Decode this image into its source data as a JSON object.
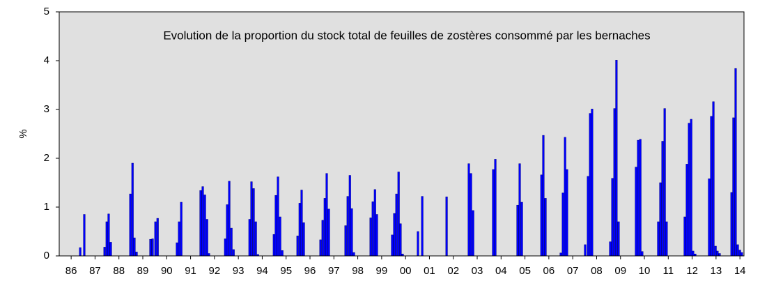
{
  "chart_data": {
    "type": "bar",
    "title": "Evolution de la proportion du stock total de feuilles de zostères consommé par les bernaches",
    "y_label": "%",
    "color": "#0000ff",
    "x": [
      1986.38,
      1986.55,
      1987.4,
      1987.49,
      1987.57,
      1987.66,
      1988.48,
      1988.57,
      1988.65,
      1988.74,
      1989.32,
      1989.41,
      1989.53,
      1989.62,
      1990.43,
      1990.52,
      1990.61,
      1991.42,
      1991.51,
      1991.6,
      1991.69,
      1991.77,
      1992.45,
      1992.53,
      1992.62,
      1992.71,
      1992.8,
      1993.47,
      1993.55,
      1993.64,
      1993.73,
      1993.82,
      1994.49,
      1994.57,
      1994.66,
      1994.75,
      1994.84,
      1995.48,
      1995.57,
      1995.65,
      1995.74,
      1996.44,
      1996.53,
      1996.62,
      1996.7,
      1996.79,
      1997.49,
      1997.58,
      1997.67,
      1997.75,
      1997.84,
      1998.54,
      1998.63,
      1998.72,
      1998.8,
      1999.44,
      1999.53,
      1999.62,
      1999.71,
      1999.79,
      1999.88,
      2000.52,
      2000.7,
      2001.72,
      2002.65,
      2002.74,
      2002.83,
      2003.67,
      2003.76,
      2004.69,
      2004.78,
      2004.87,
      2005.69,
      2005.77,
      2005.86,
      2006.5,
      2006.59,
      2006.68,
      2006.76,
      2007.52,
      2007.64,
      2007.73,
      2007.81,
      2008.57,
      2008.66,
      2008.75,
      2008.83,
      2008.92,
      2009.65,
      2009.74,
      2009.83,
      2009.91,
      2010.58,
      2010.67,
      2010.76,
      2010.85,
      2010.93,
      2011.69,
      2011.78,
      2011.87,
      2011.96,
      2012.04,
      2012.13,
      2012.71,
      2012.8,
      2012.89,
      2012.98,
      2013.06,
      2013.15,
      2013.65,
      2013.73,
      2013.82,
      2013.91,
      2014.0,
      2014.08
    ],
    "values": [
      0.17,
      0.85,
      0.18,
      0.7,
      0.86,
      0.28,
      1.27,
      1.9,
      0.37,
      0.08,
      0.34,
      0.35,
      0.7,
      0.77,
      0.27,
      0.7,
      1.1,
      1.34,
      1.42,
      1.25,
      0.75,
      0.05,
      0.35,
      1.05,
      1.53,
      0.57,
      0.13,
      0.75,
      1.52,
      1.38,
      0.7,
      0.03,
      0.44,
      1.24,
      1.62,
      0.8,
      0.11,
      0.41,
      1.08,
      1.35,
      0.68,
      0.33,
      0.73,
      1.18,
      1.69,
      0.96,
      0.62,
      1.22,
      1.65,
      0.97,
      0.07,
      0.78,
      1.11,
      1.36,
      0.85,
      0.43,
      0.87,
      1.27,
      1.72,
      0.66,
      0.04,
      0.5,
      1.22,
      1.21,
      1.89,
      1.69,
      0.93,
      1.77,
      1.98,
      1.04,
      1.89,
      1.1,
      1.66,
      2.47,
      1.18,
      0.06,
      1.29,
      2.43,
      1.77,
      0.23,
      1.63,
      2.92,
      3.01,
      0.29,
      1.59,
      3.02,
      4.01,
      0.7,
      1.82,
      2.37,
      2.39,
      0.09,
      0.7,
      1.5,
      2.35,
      3.02,
      0.7,
      0.8,
      1.88,
      2.72,
      2.8,
      0.1,
      0.04,
      1.58,
      2.86,
      3.16,
      0.2,
      0.1,
      0.05,
      1.3,
      2.83,
      3.84,
      0.23,
      0.12,
      0.07
    ],
    "xlim": [
      1985.5,
      2014.17
    ],
    "xticks": [
      {
        "value": 1986,
        "label": "86"
      },
      {
        "value": 1987,
        "label": "87"
      },
      {
        "value": 1988,
        "label": "88"
      },
      {
        "value": 1989,
        "label": "89"
      },
      {
        "value": 1990,
        "label": "90"
      },
      {
        "value": 1991,
        "label": "91"
      },
      {
        "value": 1992,
        "label": "92"
      },
      {
        "value": 1993,
        "label": "93"
      },
      {
        "value": 1994,
        "label": "94"
      },
      {
        "value": 1995,
        "label": "95"
      },
      {
        "value": 1996,
        "label": "96"
      },
      {
        "value": 1997,
        "label": "97"
      },
      {
        "value": 1998,
        "label": "98"
      },
      {
        "value": 1999,
        "label": "99"
      },
      {
        "value": 2000,
        "label": "00"
      },
      {
        "value": 2001,
        "label": "01"
      },
      {
        "value": 2002,
        "label": "02"
      },
      {
        "value": 2003,
        "label": "03"
      },
      {
        "value": 2004,
        "label": "04"
      },
      {
        "value": 2005,
        "label": "05"
      },
      {
        "value": 2006,
        "label": "06"
      },
      {
        "value": 2007,
        "label": "07"
      },
      {
        "value": 2008,
        "label": "08"
      },
      {
        "value": 2009,
        "label": "09"
      },
      {
        "value": 2010,
        "label": "10"
      },
      {
        "value": 2011,
        "label": "11"
      },
      {
        "value": 2012,
        "label": "12"
      },
      {
        "value": 2013,
        "label": "13"
      },
      {
        "value": 2014,
        "label": "14"
      }
    ],
    "ylim": [
      0,
      5
    ],
    "yticks": [
      0,
      1,
      2,
      3,
      4,
      5
    ]
  }
}
